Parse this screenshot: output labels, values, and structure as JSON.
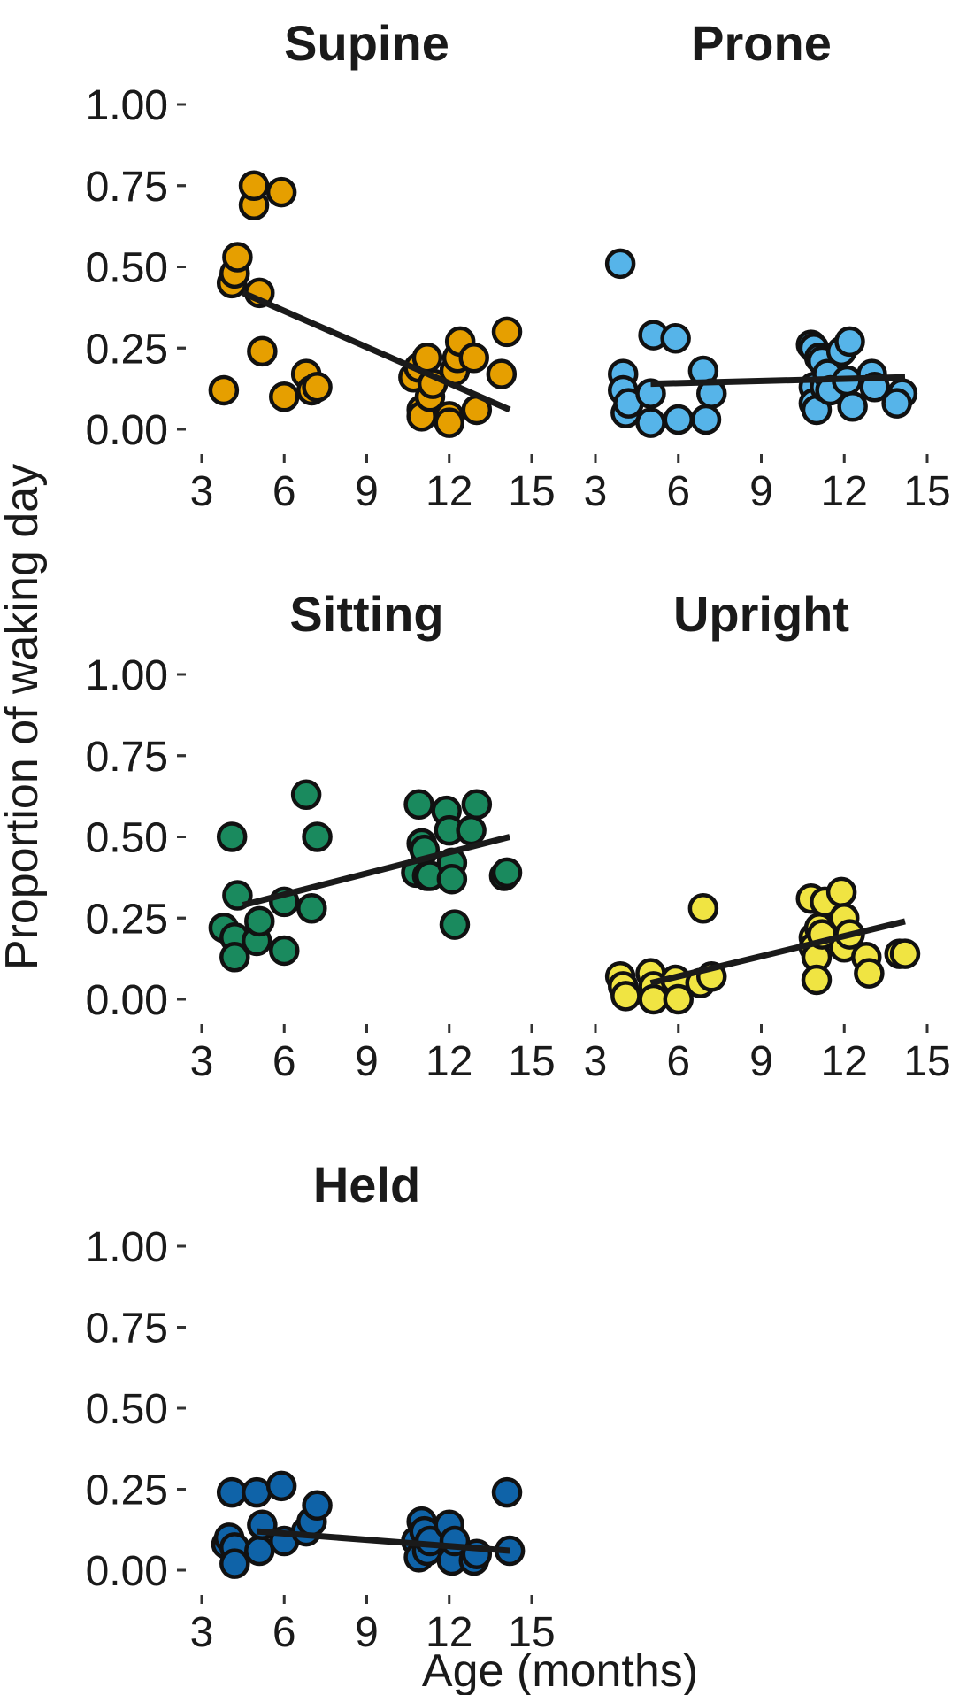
{
  "chart_data": {
    "type": "scatter",
    "layout": "facet-grid",
    "xlabel": "Age (months)",
    "ylabel": "Proportion of waking day",
    "xlim": [
      3,
      15
    ],
    "ylim": [
      0,
      1
    ],
    "x_ticks": [
      3,
      6,
      9,
      12,
      15
    ],
    "y_ticks": [
      0,
      0.25,
      0.5,
      0.75,
      1.0
    ],
    "y_tick_labels": [
      "0.00",
      "0.25",
      "0.50",
      "0.75",
      "1.00"
    ],
    "grid": false,
    "panels": [
      {
        "title": "Supine",
        "color": "#E69F00",
        "trend": {
          "x": [
            4.5,
            14.2
          ],
          "y": [
            0.42,
            0.06
          ]
        },
        "points": [
          [
            3.8,
            0.12
          ],
          [
            4.1,
            0.45
          ],
          [
            4.2,
            0.48
          ],
          [
            4.3,
            0.53
          ],
          [
            5.1,
            0.42
          ],
          [
            5.2,
            0.24
          ],
          [
            4.9,
            0.69
          ],
          [
            4.9,
            0.75
          ],
          [
            5.9,
            0.73
          ],
          [
            6.0,
            0.1
          ],
          [
            6.8,
            0.17
          ],
          [
            7.0,
            0.12
          ],
          [
            7.2,
            0.13
          ],
          [
            10.7,
            0.16
          ],
          [
            10.9,
            0.19
          ],
          [
            11.0,
            0.06
          ],
          [
            11.0,
            0.04
          ],
          [
            11.2,
            0.22
          ],
          [
            11.3,
            0.1
          ],
          [
            11.4,
            0.14
          ],
          [
            12.0,
            0.04
          ],
          [
            12.0,
            0.02
          ],
          [
            12.2,
            0.18
          ],
          [
            12.3,
            0.22
          ],
          [
            12.4,
            0.27
          ],
          [
            12.9,
            0.22
          ],
          [
            13.0,
            0.06
          ],
          [
            13.9,
            0.17
          ],
          [
            14.1,
            0.3
          ]
        ]
      },
      {
        "title": "Prone",
        "color": "#56B4E9",
        "trend": {
          "x": [
            5.0,
            14.2
          ],
          "y": [
            0.14,
            0.16
          ]
        },
        "points": [
          [
            3.9,
            0.51
          ],
          [
            4.0,
            0.17
          ],
          [
            4.0,
            0.12
          ],
          [
            4.1,
            0.05
          ],
          [
            4.2,
            0.08
          ],
          [
            5.0,
            0.11
          ],
          [
            5.0,
            0.02
          ],
          [
            5.1,
            0.29
          ],
          [
            5.9,
            0.28
          ],
          [
            6.0,
            0.03
          ],
          [
            6.9,
            0.18
          ],
          [
            7.0,
            0.03
          ],
          [
            7.2,
            0.11
          ],
          [
            10.8,
            0.26
          ],
          [
            10.9,
            0.25
          ],
          [
            10.9,
            0.13
          ],
          [
            10.9,
            0.08
          ],
          [
            11.0,
            0.06
          ],
          [
            11.1,
            0.22
          ],
          [
            11.2,
            0.21
          ],
          [
            11.3,
            0.13
          ],
          [
            11.4,
            0.17
          ],
          [
            11.5,
            0.12
          ],
          [
            11.9,
            0.24
          ],
          [
            12.1,
            0.15
          ],
          [
            12.2,
            0.27
          ],
          [
            12.3,
            0.07
          ],
          [
            13.0,
            0.17
          ],
          [
            13.1,
            0.13
          ],
          [
            14.1,
            0.11
          ],
          [
            13.9,
            0.08
          ]
        ]
      },
      {
        "title": "Sitting",
        "color": "#1A8A5E",
        "trend": {
          "x": [
            4.5,
            14.2
          ],
          "y": [
            0.29,
            0.5
          ]
        },
        "points": [
          [
            3.8,
            0.22
          ],
          [
            4.1,
            0.5
          ],
          [
            4.2,
            0.19
          ],
          [
            4.2,
            0.13
          ],
          [
            4.3,
            0.32
          ],
          [
            5.0,
            0.18
          ],
          [
            5.1,
            0.24
          ],
          [
            6.0,
            0.3
          ],
          [
            6.0,
            0.15
          ],
          [
            6.8,
            0.63
          ],
          [
            7.0,
            0.28
          ],
          [
            7.2,
            0.5
          ],
          [
            10.8,
            0.39
          ],
          [
            10.9,
            0.6
          ],
          [
            11.0,
            0.48
          ],
          [
            11.1,
            0.46
          ],
          [
            11.2,
            0.38
          ],
          [
            11.3,
            0.38
          ],
          [
            11.9,
            0.58
          ],
          [
            12.0,
            0.52
          ],
          [
            12.1,
            0.42
          ],
          [
            12.1,
            0.37
          ],
          [
            12.2,
            0.23
          ],
          [
            12.8,
            0.52
          ],
          [
            13.0,
            0.6
          ],
          [
            14.0,
            0.38
          ],
          [
            14.1,
            0.39
          ]
        ]
      },
      {
        "title": "Upright",
        "color": "#F0E442",
        "trend": {
          "x": [
            5.0,
            14.2
          ],
          "y": [
            0.05,
            0.24
          ]
        },
        "points": [
          [
            3.9,
            0.07
          ],
          [
            4.0,
            0.04
          ],
          [
            4.1,
            0.01
          ],
          [
            5.0,
            0.08
          ],
          [
            5.1,
            0.04
          ],
          [
            5.1,
            0.0
          ],
          [
            5.9,
            0.06
          ],
          [
            6.0,
            0.0
          ],
          [
            6.8,
            0.05
          ],
          [
            6.9,
            0.28
          ],
          [
            7.2,
            0.07
          ],
          [
            10.8,
            0.31
          ],
          [
            10.9,
            0.19
          ],
          [
            10.9,
            0.16
          ],
          [
            11.0,
            0.13
          ],
          [
            11.0,
            0.06
          ],
          [
            11.1,
            0.22
          ],
          [
            11.2,
            0.2
          ],
          [
            11.3,
            0.3
          ],
          [
            11.9,
            0.33
          ],
          [
            12.0,
            0.25
          ],
          [
            12.0,
            0.16
          ],
          [
            12.2,
            0.2
          ],
          [
            12.8,
            0.13
          ],
          [
            12.9,
            0.08
          ],
          [
            14.0,
            0.14
          ],
          [
            14.2,
            0.14
          ]
        ]
      },
      {
        "title": "Held",
        "color": "#0F63A8",
        "trend": {
          "x": [
            5.0,
            14.2
          ],
          "y": [
            0.12,
            0.06
          ]
        },
        "points": [
          [
            3.9,
            0.08
          ],
          [
            4.0,
            0.1
          ],
          [
            4.1,
            0.24
          ],
          [
            4.2,
            0.07
          ],
          [
            4.2,
            0.02
          ],
          [
            5.0,
            0.24
          ],
          [
            5.1,
            0.06
          ],
          [
            5.2,
            0.14
          ],
          [
            5.9,
            0.26
          ],
          [
            6.0,
            0.09
          ],
          [
            6.8,
            0.12
          ],
          [
            7.0,
            0.15
          ],
          [
            7.2,
            0.2
          ],
          [
            10.8,
            0.09
          ],
          [
            10.9,
            0.04
          ],
          [
            11.0,
            0.15
          ],
          [
            11.1,
            0.12
          ],
          [
            11.2,
            0.06
          ],
          [
            11.3,
            0.09
          ],
          [
            12.0,
            0.14
          ],
          [
            12.1,
            0.03
          ],
          [
            12.2,
            0.09
          ],
          [
            12.9,
            0.03
          ],
          [
            13.0,
            0.05
          ],
          [
            14.1,
            0.24
          ],
          [
            14.2,
            0.06
          ]
        ]
      }
    ]
  }
}
